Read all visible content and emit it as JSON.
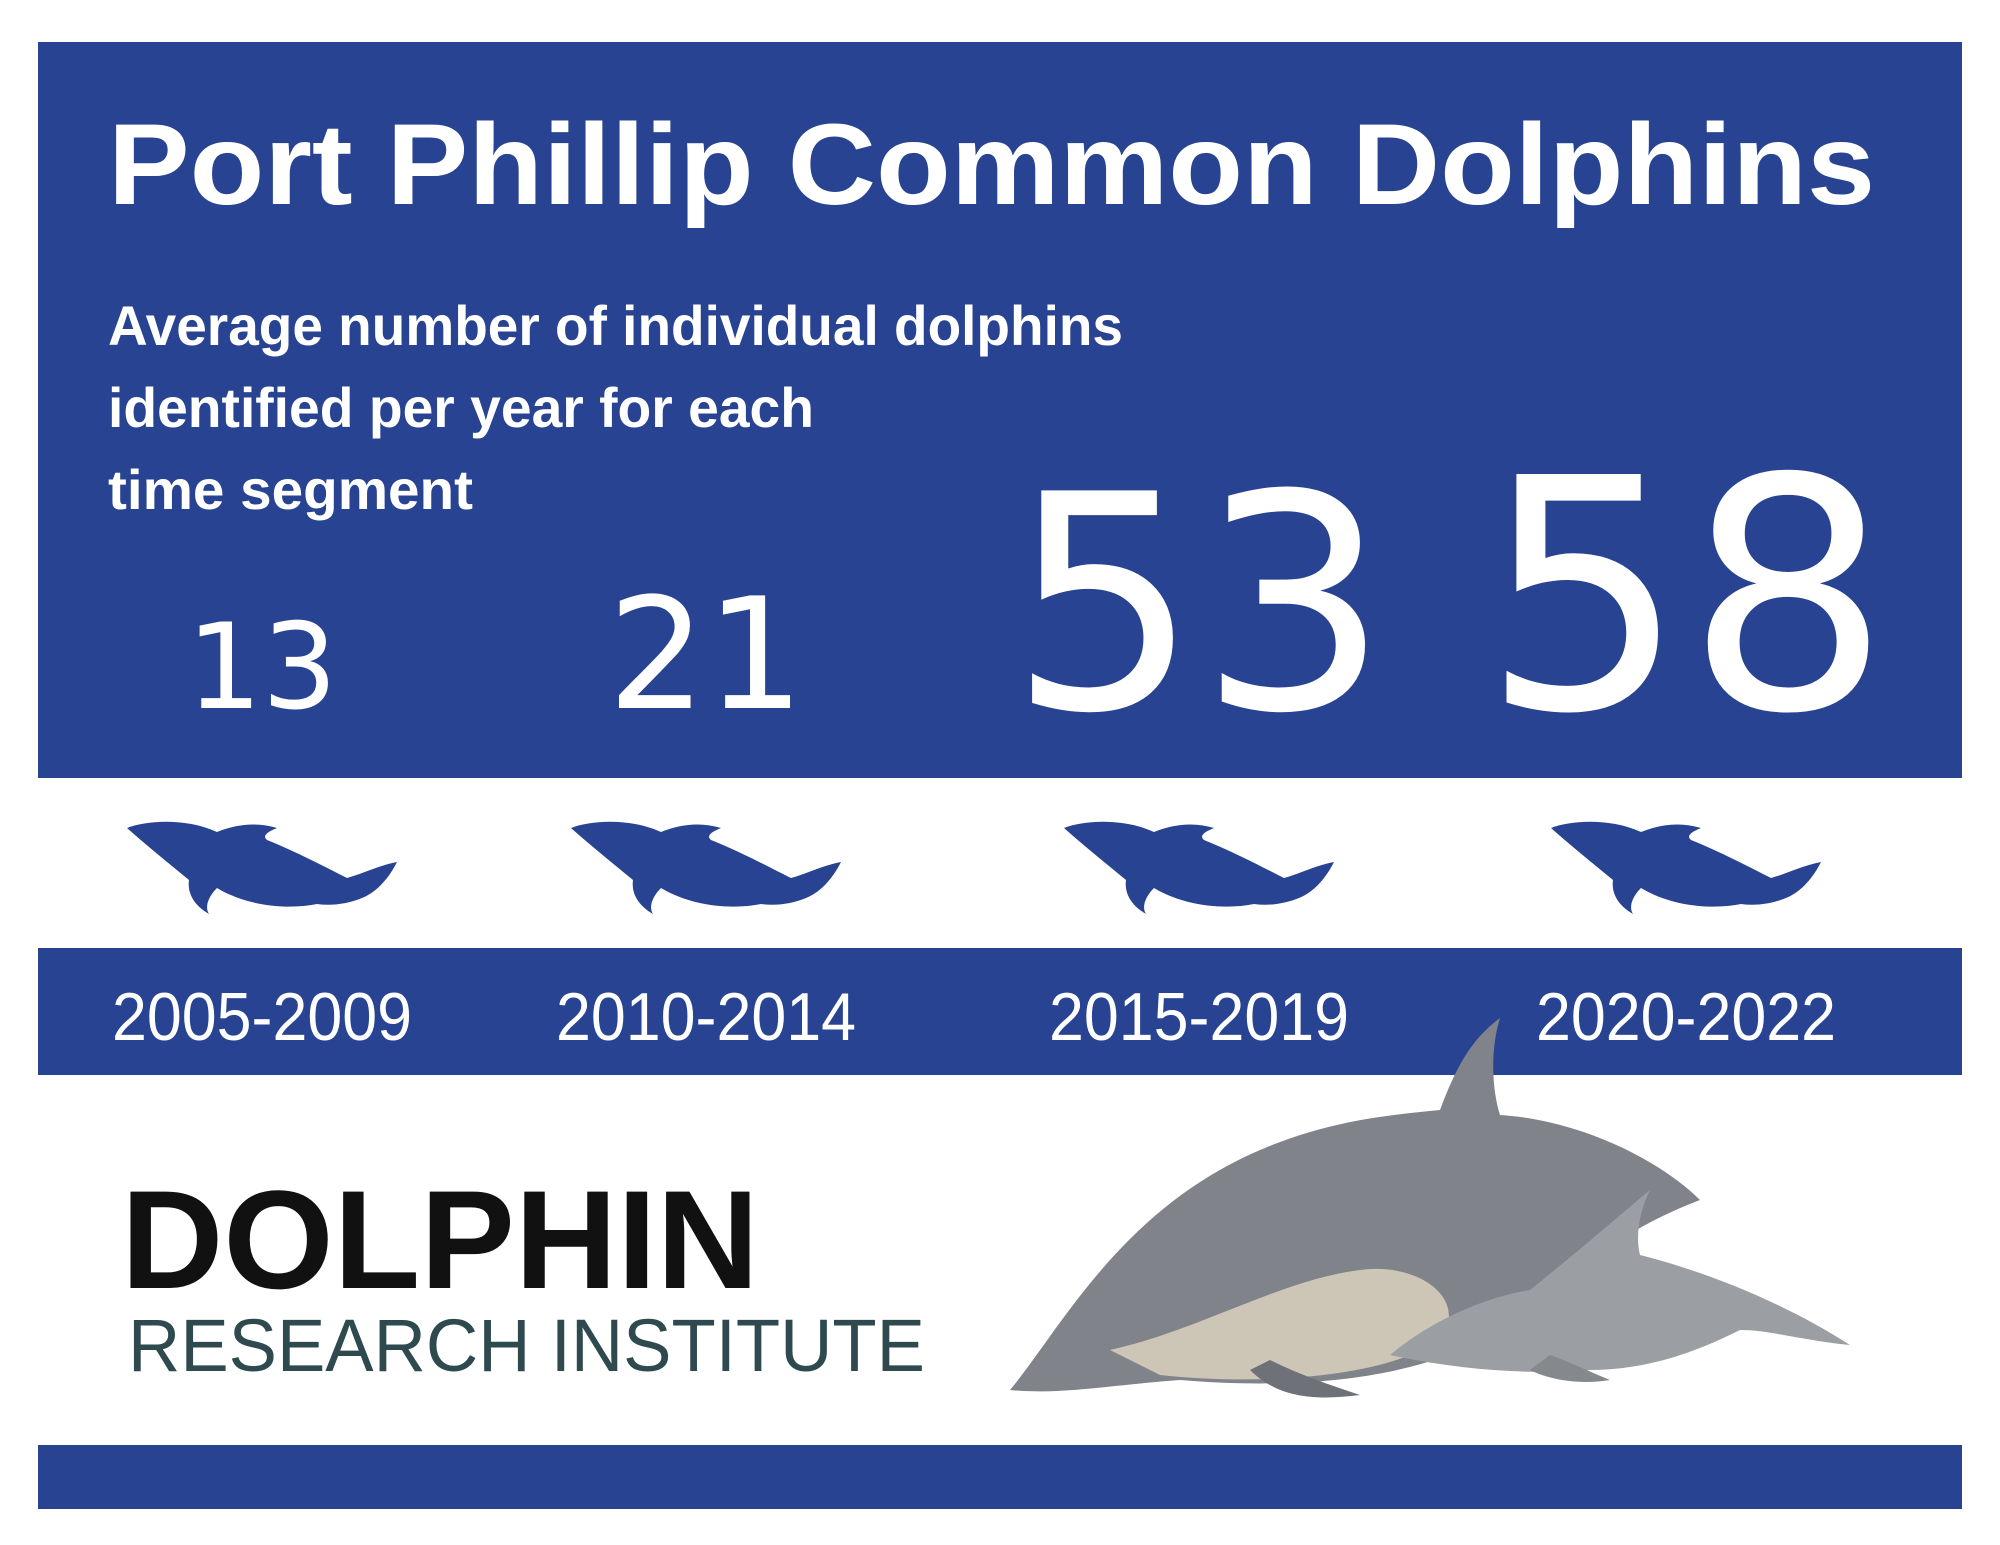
{
  "header": {
    "title": "Port Phillip Common Dolphins",
    "subtitle": [
      "Average number of individual dolphins",
      "identified per year for each",
      "time segment"
    ]
  },
  "segments": [
    {
      "period": "2005-2009",
      "value": 13
    },
    {
      "period": "2010-2014",
      "value": 21
    },
    {
      "period": "2015-2019",
      "value": 53
    },
    {
      "period": "2020-2022",
      "value": 58
    }
  ],
  "logo": {
    "name": "DOLPHIN",
    "subname": "RESEARCH INSTITUTE"
  }
}
